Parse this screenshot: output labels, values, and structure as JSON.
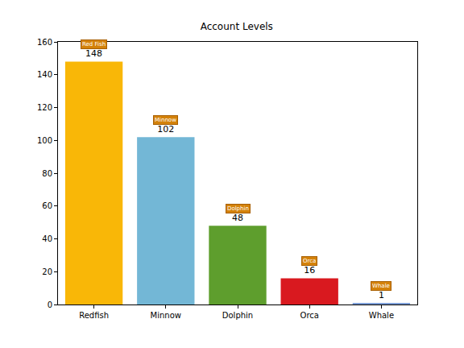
{
  "chart_data": {
    "type": "bar",
    "title": "Account Levels",
    "categories": [
      "Redfish",
      "Minnow",
      "Dolphin",
      "Orca",
      "Whale"
    ],
    "values": [
      148,
      102,
      48,
      16,
      1
    ],
    "colors": [
      "#f9b707",
      "#73b7d6",
      "#5e9e2d",
      "#d9191f",
      "#7e9fd8"
    ],
    "ylim": [
      0,
      160
    ],
    "yticks": [
      0,
      20,
      40,
      60,
      80,
      100,
      120,
      140,
      160
    ],
    "grid": false,
    "data_labels": true,
    "annotations": [
      "Red Fish",
      "Minnow",
      "Dolphin",
      "Orca",
      "Whale"
    ]
  }
}
